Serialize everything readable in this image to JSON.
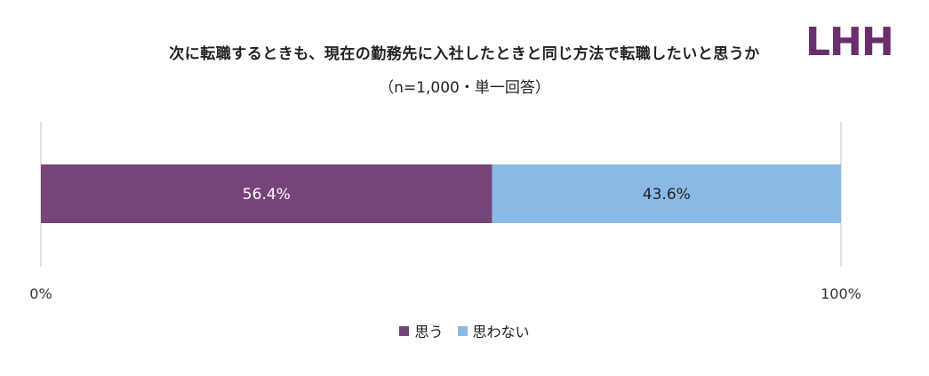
{
  "header": {
    "title": "次に転職するときも、現在の勤務先に入社したときと同じ方法で転職したいと思うか",
    "subtitle": "（n=1,000・単一回答）",
    "logo_text": "LHH"
  },
  "colors": {
    "series_1": "#77447a",
    "series_2": "#8ab9e6",
    "logo": "#6c2d6e"
  },
  "chart_data": {
    "type": "bar",
    "orientation": "horizontal",
    "stacked": true,
    "title": "次に転職するときも、現在の勤務先に入社したときと同じ方法で転職したいと思うか",
    "subtitle": "（n=1,000・単一回答）",
    "categories": [
      ""
    ],
    "series": [
      {
        "name": "思う",
        "values": [
          56.4
        ],
        "label": "56.4%"
      },
      {
        "name": "思わない",
        "values": [
          43.6
        ],
        "label": "43.6%"
      }
    ],
    "xlim": [
      0,
      100
    ],
    "xticks": [
      "0%",
      "100%"
    ],
    "grid": false,
    "legend_position": "bottom"
  }
}
